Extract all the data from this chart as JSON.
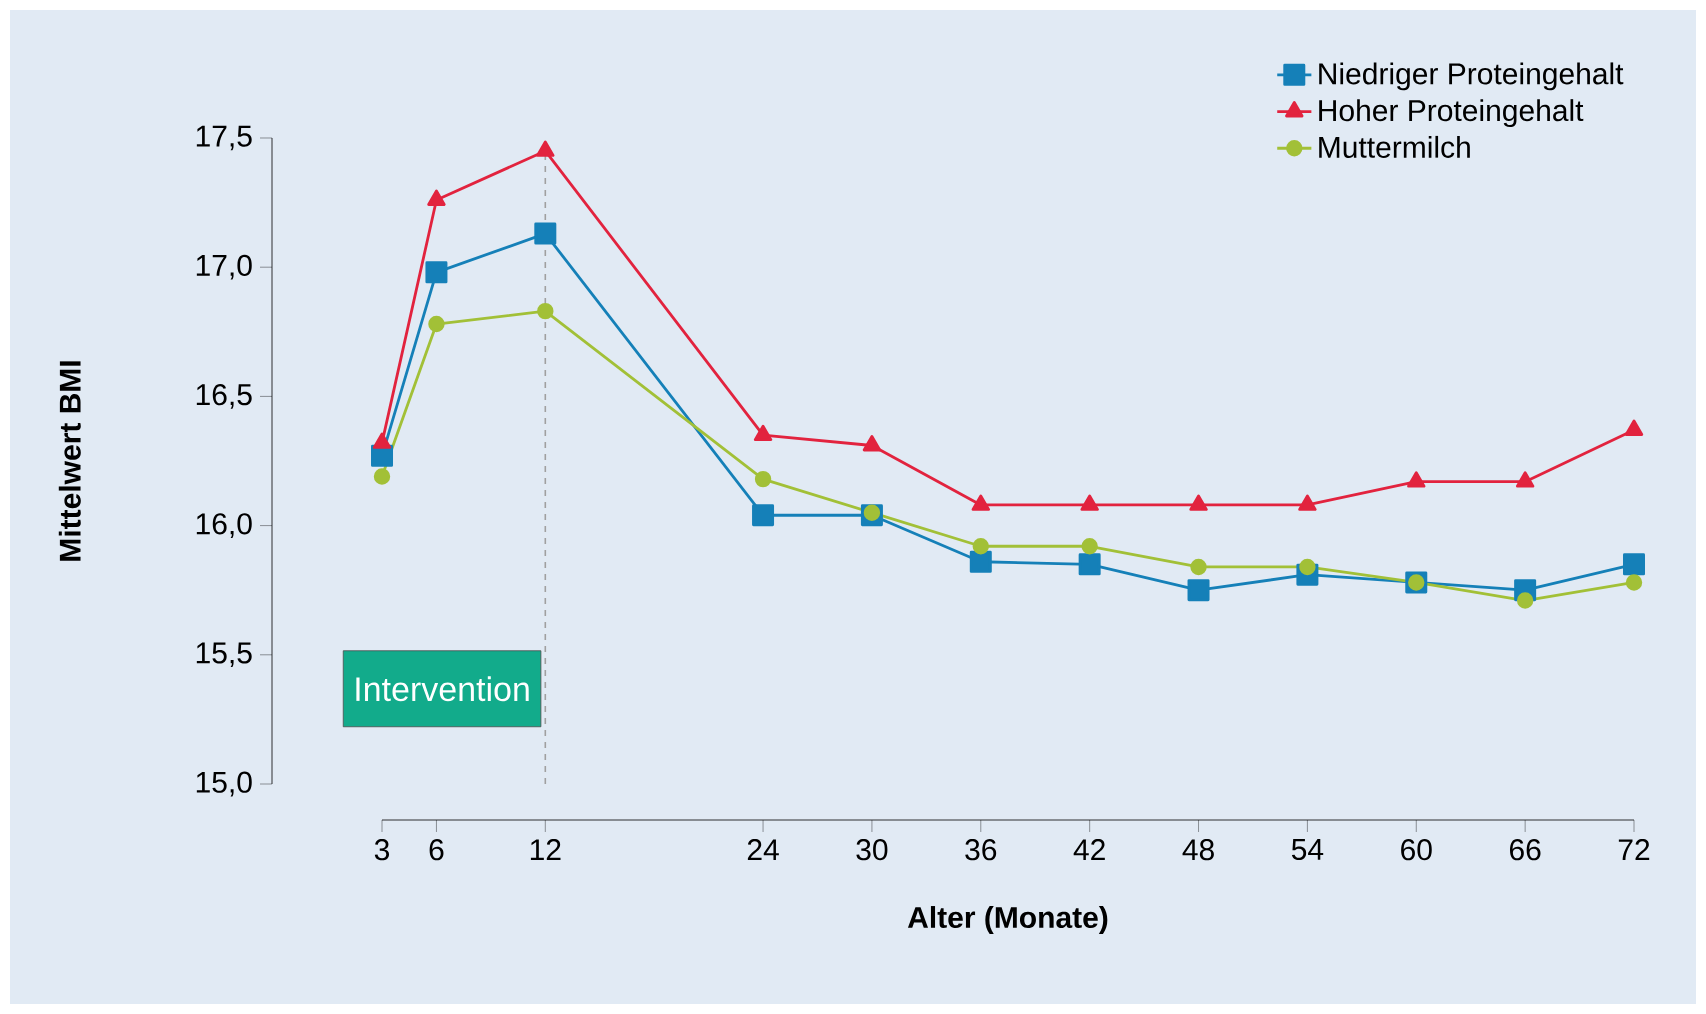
{
  "chart_data": {
    "type": "line",
    "xlabel": "Alter (Monate)",
    "ylabel": "Mittelwert BMI",
    "x": [
      3,
      6,
      12,
      24,
      30,
      36,
      42,
      48,
      54,
      60,
      66,
      72
    ],
    "series": [
      {
        "name": "Niedriger Proteingehalt",
        "color": "#1580b8",
        "marker": "square",
        "values": [
          16.27,
          16.98,
          17.13,
          16.04,
          16.04,
          15.86,
          15.85,
          15.75,
          15.81,
          15.78,
          15.75,
          15.85
        ]
      },
      {
        "name": "Hoher Proteingehalt",
        "color": "#e2233e",
        "marker": "triangle",
        "values": [
          16.32,
          17.26,
          17.45,
          16.35,
          16.31,
          16.08,
          16.08,
          16.08,
          16.08,
          16.17,
          16.17,
          16.37
        ]
      },
      {
        "name": "Muttermilch",
        "color": "#a2c037",
        "marker": "circle",
        "values": [
          16.19,
          16.78,
          16.83,
          16.18,
          16.05,
          15.92,
          15.92,
          15.84,
          15.84,
          15.78,
          15.71,
          15.78
        ]
      }
    ],
    "xlim": [
      3,
      72
    ],
    "xticks": [
      3,
      6,
      12,
      24,
      30,
      36,
      42,
      48,
      54,
      60,
      66,
      72
    ],
    "ylim": [
      15,
      17.5
    ],
    "yticks": [
      {
        "value": 15,
        "label": "15,0"
      },
      {
        "value": 15.5,
        "label": "15,5"
      },
      {
        "value": 16,
        "label": "16,0"
      },
      {
        "value": 16.5,
        "label": "16,5"
      },
      {
        "value": 17,
        "label": "17,0"
      },
      {
        "value": 17.5,
        "label": "17,5"
      }
    ],
    "ref_lines": [
      {
        "axis": "x",
        "value": 12,
        "label": "Intervention",
        "color": "#a0a0a0",
        "line_style": "dashed"
      }
    ],
    "legend": "top right",
    "grid": false,
    "line_style": "solid"
  }
}
